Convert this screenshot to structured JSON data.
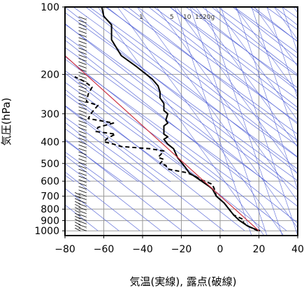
{
  "chart_data": {
    "type": "line",
    "title": "",
    "xlabel": "気温(実線), 露点(破線)",
    "ylabel": "気圧(hPa)",
    "x_unit": "°C",
    "y_unit": "hPa",
    "y_scale": "log",
    "xlim": [
      -80,
      40
    ],
    "ylim": [
      1050,
      100
    ],
    "x_ticks": [
      -80,
      -60,
      -40,
      -20,
      0,
      20,
      40
    ],
    "x_tick_labels": [
      "−80",
      "−60",
      "−40",
      "−20",
      "0",
      "20",
      "40"
    ],
    "y_ticks": [
      1000,
      900,
      800,
      700,
      600,
      500,
      400,
      300,
      200,
      100
    ],
    "y_tick_labels": [
      "1000",
      "900",
      "800",
      "700",
      "600",
      "500",
      "400",
      "300",
      "200",
      "100"
    ],
    "grid": true,
    "mixing_ratio_labels": [
      "1",
      "5",
      "10",
      "15",
      "20g"
    ],
    "series": [
      {
        "style": "solid",
        "points": [
          [
            20.5,
            1000
          ],
          [
            17,
            975
          ],
          [
            14,
            950
          ],
          [
            10,
            900
          ],
          [
            7,
            850
          ],
          [
            2,
            750
          ],
          [
            -2,
            700
          ],
          [
            -4,
            650
          ],
          [
            -6,
            630
          ],
          [
            -12,
            580
          ],
          [
            -16,
            550
          ],
          [
            -18,
            520
          ],
          [
            -22,
            470
          ],
          [
            -24,
            430
          ],
          [
            -27,
            410
          ],
          [
            -29,
            390
          ],
          [
            -27,
            380
          ],
          [
            -29,
            370
          ],
          [
            -29,
            340
          ],
          [
            -27,
            330
          ],
          [
            -28,
            320
          ],
          [
            -27,
            300
          ],
          [
            -29,
            290
          ],
          [
            -29,
            270
          ],
          [
            -31,
            255
          ],
          [
            -31,
            240
          ],
          [
            -32,
            225
          ],
          [
            -35,
            210
          ],
          [
            -43,
            185
          ],
          [
            -51,
            165
          ],
          [
            -56,
            140
          ],
          [
            -56,
            120
          ],
          [
            -60,
            110
          ],
          [
            -61,
            100
          ]
        ]
      },
      {
        "style": "dashed",
        "points": [
          [
            19.5,
            1000
          ],
          [
            14,
            950
          ],
          [
            12,
            920
          ],
          [
            12,
            890
          ],
          [
            7,
            850
          ],
          [
            2,
            750
          ],
          [
            -2,
            700
          ],
          [
            -3,
            650
          ],
          [
            -4,
            620
          ],
          [
            -10,
            590
          ],
          [
            -13,
            570
          ],
          [
            -17,
            550
          ],
          [
            -27,
            530
          ],
          [
            -28,
            510
          ],
          [
            -31,
            500
          ],
          [
            -29,
            480
          ],
          [
            -32,
            470
          ],
          [
            -29,
            440
          ],
          [
            -36,
            430
          ],
          [
            -51,
            420
          ],
          [
            -55,
            410
          ],
          [
            -60,
            400
          ],
          [
            -58,
            385
          ],
          [
            -54,
            370
          ],
          [
            -64,
            360
          ],
          [
            -63,
            345
          ],
          [
            -55,
            330
          ],
          [
            -68,
            315
          ],
          [
            -66,
            295
          ],
          [
            -63,
            275
          ],
          [
            -69,
            265
          ],
          [
            -68,
            245
          ],
          [
            -66,
            228
          ],
          [
            -70,
            215
          ],
          [
            -75,
            205
          ]
        ]
      },
      {
        "style": "parcel",
        "color": "#cc3344",
        "points": [
          [
            20,
            1000
          ],
          [
            -80,
            165
          ]
        ]
      }
    ]
  },
  "colors": {
    "background": "#ffffff",
    "frame": "#000000",
    "grid": "#9a9a9a",
    "guide_lines": "#5b6ad8",
    "parcel": "#cc3344",
    "profiles": "#000000",
    "wind_barbs": "#000000"
  }
}
